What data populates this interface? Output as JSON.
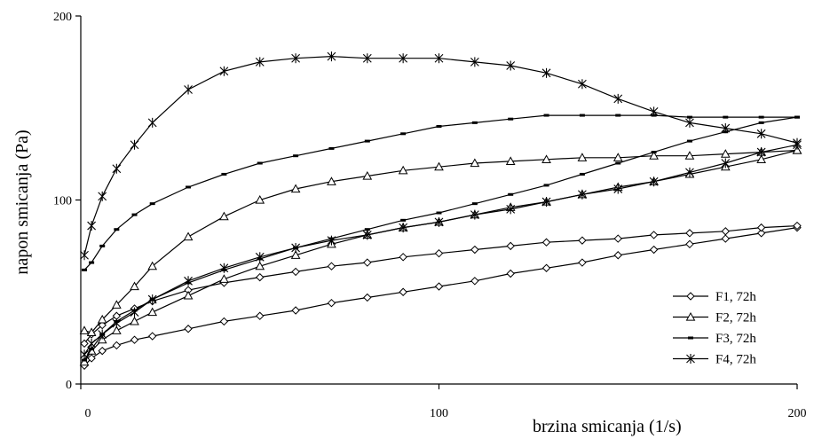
{
  "chart_data": {
    "type": "line",
    "title": "",
    "xlabel": "brzina smicanja (1/s)",
    "ylabel": "napon smicanja (Pa)",
    "xlim": [
      0,
      200
    ],
    "ylim": [
      0,
      200
    ],
    "x_ticks": [
      "0",
      "100",
      "200"
    ],
    "y_ticks": [
      "0",
      "100",
      "200"
    ],
    "grid": false,
    "legend_position": "bottom-right",
    "series": [
      {
        "name": "F1, 72h",
        "marker": "diamond",
        "color": "#000000",
        "up": {
          "x": [
            1,
            3,
            6,
            10,
            15,
            20,
            30,
            40,
            50,
            60,
            70,
            80,
            90,
            100,
            110,
            120,
            130,
            140,
            150,
            160,
            170,
            180,
            190,
            200
          ],
          "y": [
            10,
            14,
            18,
            21,
            24,
            26,
            30,
            34,
            37,
            40,
            44,
            47,
            50,
            53,
            56,
            60,
            63,
            66,
            70,
            73,
            76,
            79,
            82,
            85
          ]
        },
        "down": {
          "x": [
            200,
            190,
            180,
            170,
            160,
            150,
            140,
            130,
            120,
            110,
            100,
            90,
            80,
            70,
            60,
            50,
            40,
            30,
            20,
            15,
            10,
            6,
            3,
            1
          ],
          "y": [
            86,
            85,
            83,
            82,
            81,
            79,
            78,
            77,
            75,
            73,
            71,
            69,
            66,
            64,
            61,
            58,
            55,
            51,
            45,
            41,
            37,
            32,
            27,
            22
          ]
        }
      },
      {
        "name": "F2, 72h",
        "marker": "triangle",
        "color": "#000000",
        "up": {
          "x": [
            1,
            3,
            6,
            10,
            15,
            20,
            30,
            40,
            50,
            60,
            70,
            80,
            90,
            100,
            110,
            120,
            130,
            140,
            150,
            160,
            170,
            180,
            190,
            200
          ],
          "y": [
            12,
            18,
            24,
            29,
            34,
            39,
            48,
            57,
            64,
            70,
            76,
            81,
            85,
            88,
            92,
            96,
            99,
            103,
            107,
            110,
            114,
            118,
            122,
            127
          ]
        },
        "down": {
          "x": [
            200,
            190,
            180,
            170,
            160,
            150,
            140,
            130,
            120,
            110,
            100,
            90,
            80,
            70,
            60,
            50,
            40,
            30,
            20,
            15,
            10,
            6,
            3,
            1
          ],
          "y": [
            127,
            126,
            125,
            124,
            124,
            123,
            123,
            122,
            121,
            120,
            118,
            116,
            113,
            110,
            106,
            100,
            91,
            80,
            64,
            53,
            43,
            35,
            28,
            29
          ]
        }
      },
      {
        "name": "F3, 72h",
        "marker": "dash",
        "color": "#000000",
        "up": {
          "x": [
            1,
            3,
            6,
            10,
            15,
            20,
            30,
            40,
            50,
            60,
            70,
            80,
            90,
            100,
            110,
            120,
            130,
            140,
            150,
            160,
            170,
            180,
            190,
            200
          ],
          "y": [
            13,
            19,
            27,
            34,
            40,
            46,
            55,
            62,
            68,
            74,
            79,
            84,
            89,
            93,
            98,
            103,
            108,
            114,
            120,
            126,
            132,
            137,
            142,
            145
          ]
        },
        "down": {
          "x": [
            200,
            190,
            180,
            170,
            160,
            150,
            140,
            130,
            120,
            110,
            100,
            90,
            80,
            70,
            60,
            50,
            40,
            30,
            20,
            15,
            10,
            6,
            3,
            1
          ],
          "y": [
            145,
            145,
            145,
            145,
            146,
            146,
            146,
            146,
            144,
            142,
            140,
            136,
            132,
            128,
            124,
            120,
            114,
            107,
            98,
            92,
            84,
            75,
            66,
            62
          ]
        }
      },
      {
        "name": "F4, 72h",
        "marker": "asterisk",
        "color": "#000000",
        "up": {
          "x": [
            1,
            3,
            6,
            10,
            15,
            20,
            30,
            40,
            50,
            60,
            70,
            80,
            90,
            100,
            110,
            120,
            130,
            140,
            150,
            160,
            170,
            180,
            190,
            200
          ],
          "y": [
            70,
            86,
            102,
            117,
            130,
            142,
            160,
            170,
            175,
            177,
            178,
            177,
            177,
            177,
            175,
            173,
            169,
            163,
            155,
            148,
            142,
            139,
            136,
            131
          ]
        },
        "down": {
          "x": [
            200,
            190,
            180,
            170,
            160,
            150,
            140,
            130,
            120,
            110,
            100,
            90,
            80,
            70,
            60,
            50,
            40,
            30,
            20,
            15,
            10,
            6,
            3,
            1
          ],
          "y": [
            130,
            126,
            120,
            115,
            110,
            106,
            103,
            99,
            95,
            92,
            88,
            85,
            81,
            78,
            74,
            69,
            63,
            56,
            46,
            39,
            33,
            27,
            22,
            16
          ]
        }
      }
    ]
  }
}
